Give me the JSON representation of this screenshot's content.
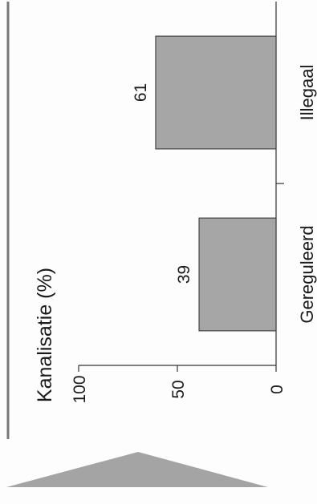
{
  "chart_data": {
    "type": "bar",
    "orientation": "rotated-90-ccw",
    "ylabel": "Kanalisatie (%)",
    "ylim": [
      0,
      100
    ],
    "yticks": [
      "100",
      "50",
      "0"
    ],
    "categories": [
      "Gereguleerd",
      "Illegaal"
    ],
    "values": [
      39,
      61
    ],
    "data_labels": [
      "39",
      "61"
    ],
    "bar_color": "#a6a6a6",
    "grid": false,
    "legend": "none"
  },
  "decorations": {
    "rule_color": "#777777",
    "triangle_color": "#a4a4a4"
  }
}
